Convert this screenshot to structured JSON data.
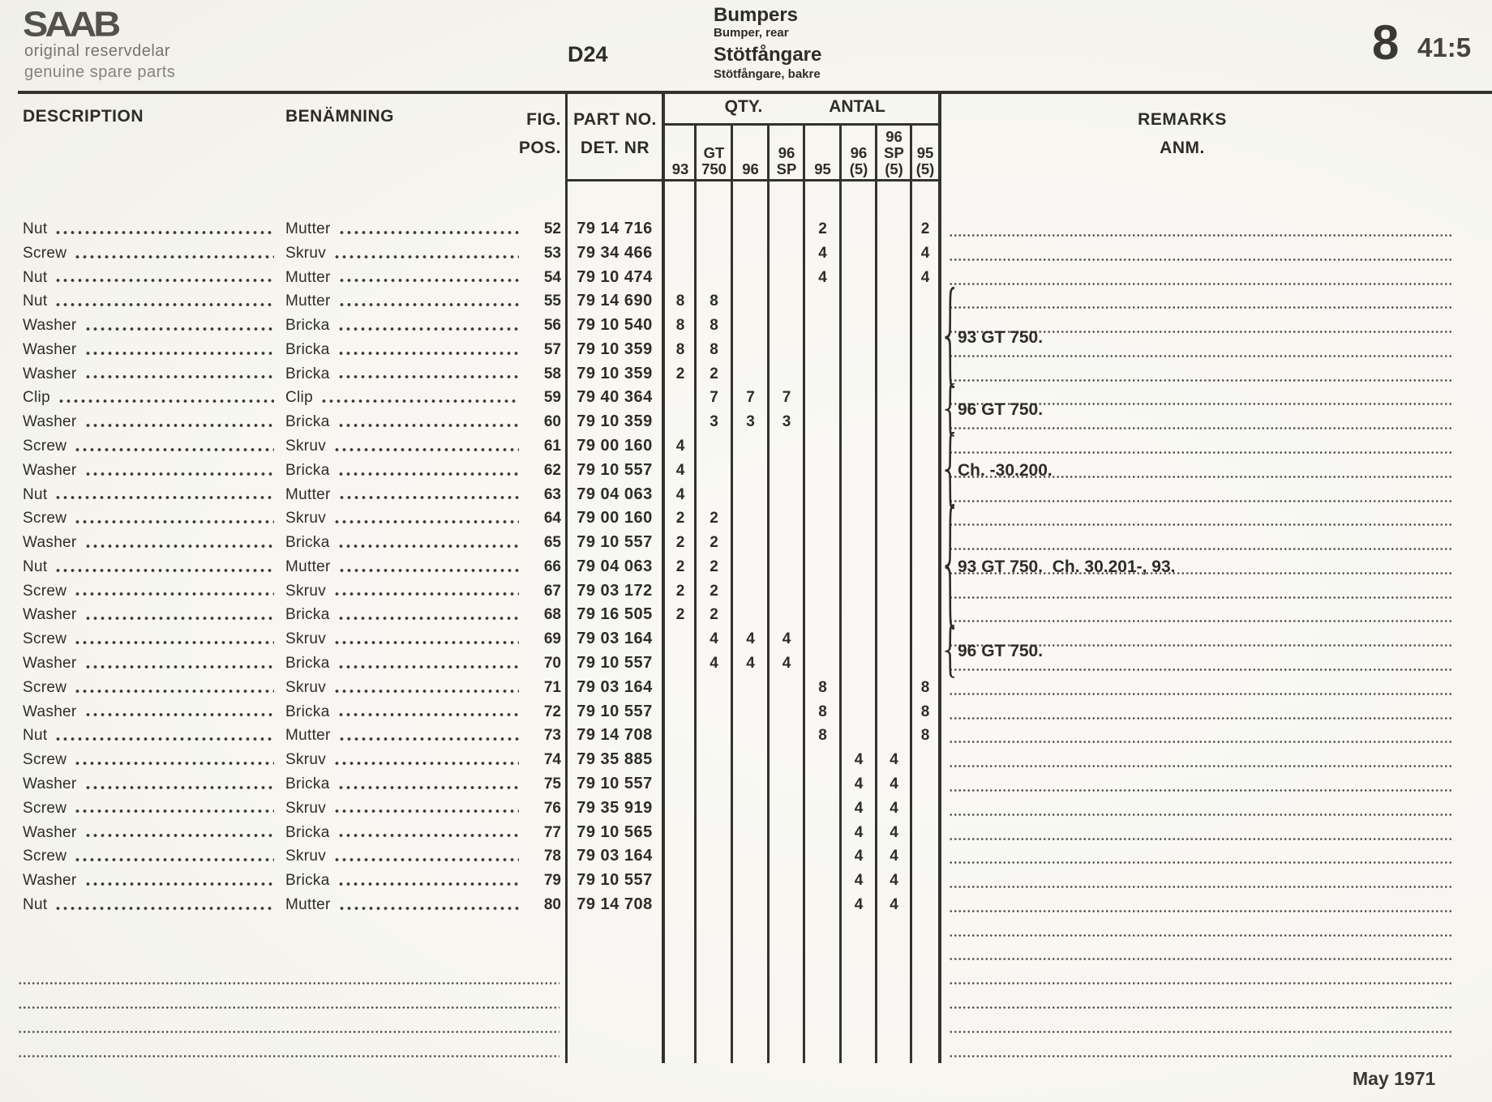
{
  "page": {
    "background": "#f8f7f3",
    "ink": "#2e2c27",
    "header": {
      "logo": "SAAB",
      "logo_sub1": "original reservdelar",
      "logo_sub2": "genuine spare parts",
      "plate_code": "D24",
      "title_en": "Bumpers",
      "subtitle_en": "Bumper, rear",
      "title_sv": "Stötfångare",
      "subtitle_sv": "Stötfångare, bakre",
      "section_number": "8",
      "page_ref": "41:5"
    },
    "footer": {
      "date": "May 1971"
    }
  },
  "table": {
    "headers": {
      "description": "DESCRIPTION",
      "benamning": "BENÄMNING",
      "fig_line1": "FIG.",
      "fig_line2": "POS.",
      "part_line1": "PART NO.",
      "part_line2": "DET. NR",
      "qty": "QTY.",
      "antal": "ANTAL",
      "remarks_line1": "REMARKS",
      "remarks_line2": "ANM.",
      "qty_columns": [
        [
          "93"
        ],
        [
          "GT",
          "750"
        ],
        [
          "96"
        ],
        [
          "96",
          "SP"
        ],
        [
          "95"
        ],
        [
          "96",
          "(5)"
        ],
        [
          "96",
          "SP",
          "(5)"
        ],
        [
          "95",
          "(5)"
        ]
      ]
    },
    "rows": [
      {
        "fig": "52",
        "desc": "Nut",
        "ben": "Mutter",
        "part": "79 14 716",
        "qty": [
          "",
          "",
          "",
          "",
          "2",
          "",
          "",
          "2"
        ]
      },
      {
        "fig": "53",
        "desc": "Screw",
        "ben": "Skruv",
        "part": "79 34 466",
        "qty": [
          "",
          "",
          "",
          "",
          "4",
          "",
          "",
          "4"
        ]
      },
      {
        "fig": "54",
        "desc": "Nut",
        "ben": "Mutter",
        "part": "79 10 474",
        "qty": [
          "",
          "",
          "",
          "",
          "4",
          "",
          "",
          "4"
        ]
      },
      {
        "fig": "55",
        "desc": "Nut",
        "ben": "Mutter",
        "part": "79 14 690",
        "qty": [
          "8",
          "8",
          "",
          "",
          "",
          "",
          "",
          ""
        ]
      },
      {
        "fig": "56",
        "desc": "Washer",
        "ben": "Bricka",
        "part": "79 10 540",
        "qty": [
          "8",
          "8",
          "",
          "",
          "",
          "",
          "",
          ""
        ]
      },
      {
        "fig": "57",
        "desc": "Washer",
        "ben": "Bricka",
        "part": "79 10 359",
        "qty": [
          "8",
          "8",
          "",
          "",
          "",
          "",
          "",
          ""
        ]
      },
      {
        "fig": "58",
        "desc": "Washer",
        "ben": "Bricka",
        "part": "79 10 359",
        "qty": [
          "2",
          "2",
          "",
          "",
          "",
          "",
          "",
          ""
        ]
      },
      {
        "fig": "59",
        "desc": "Clip",
        "ben": "Clip",
        "part": "79 40 364",
        "qty": [
          "",
          "7",
          "7",
          "7",
          "",
          "",
          "",
          ""
        ]
      },
      {
        "fig": "60",
        "desc": "Washer",
        "ben": "Bricka",
        "part": "79 10 359",
        "qty": [
          "",
          "3",
          "3",
          "3",
          "",
          "",
          "",
          ""
        ]
      },
      {
        "fig": "61",
        "desc": "Screw",
        "ben": "Skruv",
        "part": "79 00 160",
        "qty": [
          "4",
          "",
          "",
          "",
          "",
          "",
          "",
          ""
        ]
      },
      {
        "fig": "62",
        "desc": "Washer",
        "ben": "Bricka",
        "part": "79 10 557",
        "qty": [
          "4",
          "",
          "",
          "",
          "",
          "",
          "",
          ""
        ]
      },
      {
        "fig": "63",
        "desc": "Nut",
        "ben": "Mutter",
        "part": "79 04 063",
        "qty": [
          "4",
          "",
          "",
          "",
          "",
          "",
          "",
          ""
        ]
      },
      {
        "fig": "64",
        "desc": "Screw",
        "ben": "Skruv",
        "part": "79 00 160",
        "qty": [
          "2",
          "2",
          "",
          "",
          "",
          "",
          "",
          ""
        ]
      },
      {
        "fig": "65",
        "desc": "Washer",
        "ben": "Bricka",
        "part": "79 10 557",
        "qty": [
          "2",
          "2",
          "",
          "",
          "",
          "",
          "",
          ""
        ]
      },
      {
        "fig": "66",
        "desc": "Nut",
        "ben": "Mutter",
        "part": "79 04 063",
        "qty": [
          "2",
          "2",
          "",
          "",
          "",
          "",
          "",
          ""
        ]
      },
      {
        "fig": "67",
        "desc": "Screw",
        "ben": "Skruv",
        "part": "79 03 172",
        "qty": [
          "2",
          "2",
          "",
          "",
          "",
          "",
          "",
          ""
        ]
      },
      {
        "fig": "68",
        "desc": "Washer",
        "ben": "Bricka",
        "part": "79 16 505",
        "qty": [
          "2",
          "2",
          "",
          "",
          "",
          "",
          "",
          ""
        ]
      },
      {
        "fig": "69",
        "desc": "Screw",
        "ben": "Skruv",
        "part": "79 03 164",
        "qty": [
          "",
          "4",
          "4",
          "4",
          "",
          "",
          "",
          ""
        ]
      },
      {
        "fig": "70",
        "desc": "Washer",
        "ben": "Bricka",
        "part": "79 10 557",
        "qty": [
          "",
          "4",
          "4",
          "4",
          "",
          "",
          "",
          ""
        ]
      },
      {
        "fig": "71",
        "desc": "Screw",
        "ben": "Skruv",
        "part": "79 03 164",
        "qty": [
          "",
          "",
          "",
          "",
          "8",
          "",
          "",
          "8"
        ]
      },
      {
        "fig": "72",
        "desc": "Washer",
        "ben": "Bricka",
        "part": "79 10 557",
        "qty": [
          "",
          "",
          "",
          "",
          "8",
          "",
          "",
          "8"
        ]
      },
      {
        "fig": "73",
        "desc": "Nut",
        "ben": "Mutter",
        "part": "79 14 708",
        "qty": [
          "",
          "",
          "",
          "",
          "8",
          "",
          "",
          "8"
        ]
      },
      {
        "fig": "74",
        "desc": "Screw",
        "ben": "Skruv",
        "part": "79 35 885",
        "qty": [
          "",
          "",
          "",
          "",
          "",
          "4",
          "4",
          ""
        ]
      },
      {
        "fig": "75",
        "desc": "Washer",
        "ben": "Bricka",
        "part": "79 10 557",
        "qty": [
          "",
          "",
          "",
          "",
          "",
          "4",
          "4",
          ""
        ]
      },
      {
        "fig": "76",
        "desc": "Screw",
        "ben": "Skruv",
        "part": "79 35 919",
        "qty": [
          "",
          "",
          "",
          "",
          "",
          "4",
          "4",
          ""
        ]
      },
      {
        "fig": "77",
        "desc": "Washer",
        "ben": "Bricka",
        "part": "79 10 565",
        "qty": [
          "",
          "",
          "",
          "",
          "",
          "4",
          "4",
          ""
        ]
      },
      {
        "fig": "78",
        "desc": "Screw",
        "ben": "Skruv",
        "part": "79 03 164",
        "qty": [
          "",
          "",
          "",
          "",
          "",
          "4",
          "4",
          ""
        ]
      },
      {
        "fig": "79",
        "desc": "Washer",
        "ben": "Bricka",
        "part": "79 10 557",
        "qty": [
          "",
          "",
          "",
          "",
          "",
          "4",
          "4",
          ""
        ]
      },
      {
        "fig": "80",
        "desc": "Nut",
        "ben": "Mutter",
        "part": "79 14 708",
        "qty": [
          "",
          "",
          "",
          "",
          "",
          "4",
          "4",
          ""
        ]
      }
    ],
    "remark_groups": [
      {
        "label": "93 GT 750.",
        "from": 55,
        "to": 58
      },
      {
        "label": "96 GT 750.",
        "from": 59,
        "to": 60
      },
      {
        "label": "Ch. -30.200.",
        "from": 61,
        "to": 63
      },
      {
        "label": "93 GT 750.  Ch. 30.201-, 93.",
        "from": 64,
        "to": 68
      },
      {
        "label": "96 GT 750.",
        "from": 69,
        "to": 70
      }
    ]
  }
}
